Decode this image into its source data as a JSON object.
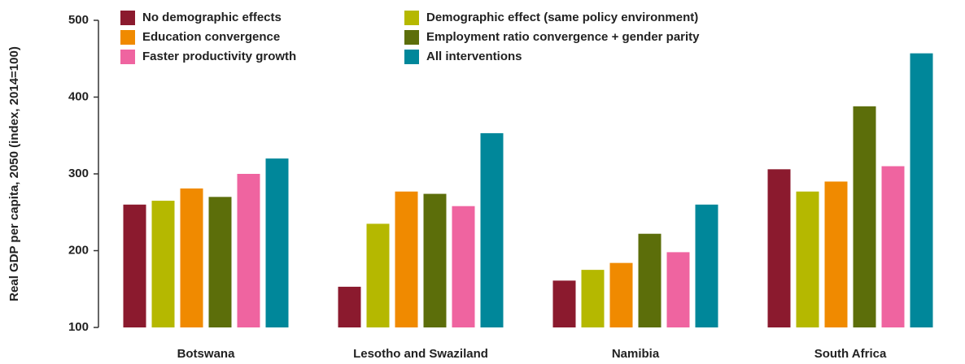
{
  "chart_data": {
    "type": "bar",
    "y_label": "Real GDP per capita, 2050 (index, 2014=100)",
    "categories": [
      "Botswana",
      "Lesotho and Swaziland",
      "Namibia",
      "South Africa"
    ],
    "series": [
      {
        "name": "No demographic effects",
        "color": "#8b1a2e",
        "values": [
          260,
          153,
          161,
          306
        ]
      },
      {
        "name": "Demographic effect (same policy environment)",
        "color": "#b5b800",
        "values": [
          265,
          235,
          175,
          277
        ]
      },
      {
        "name": "Education convergence",
        "color": "#f08a00",
        "values": [
          281,
          277,
          184,
          290
        ]
      },
      {
        "name": "Employment ratio convergence + gender parity",
        "color": "#5c6e0a",
        "values": [
          270,
          274,
          222,
          388
        ]
      },
      {
        "name": "Faster productivity growth",
        "color": "#ef64a0",
        "values": [
          300,
          258,
          198,
          310
        ]
      },
      {
        "name": "All interventions",
        "color": "#00879a",
        "values": [
          320,
          353,
          260,
          457
        ]
      }
    ],
    "ylim": [
      100,
      500
    ],
    "yticks": [
      100,
      200,
      300,
      400,
      500
    ],
    "grid": false
  }
}
